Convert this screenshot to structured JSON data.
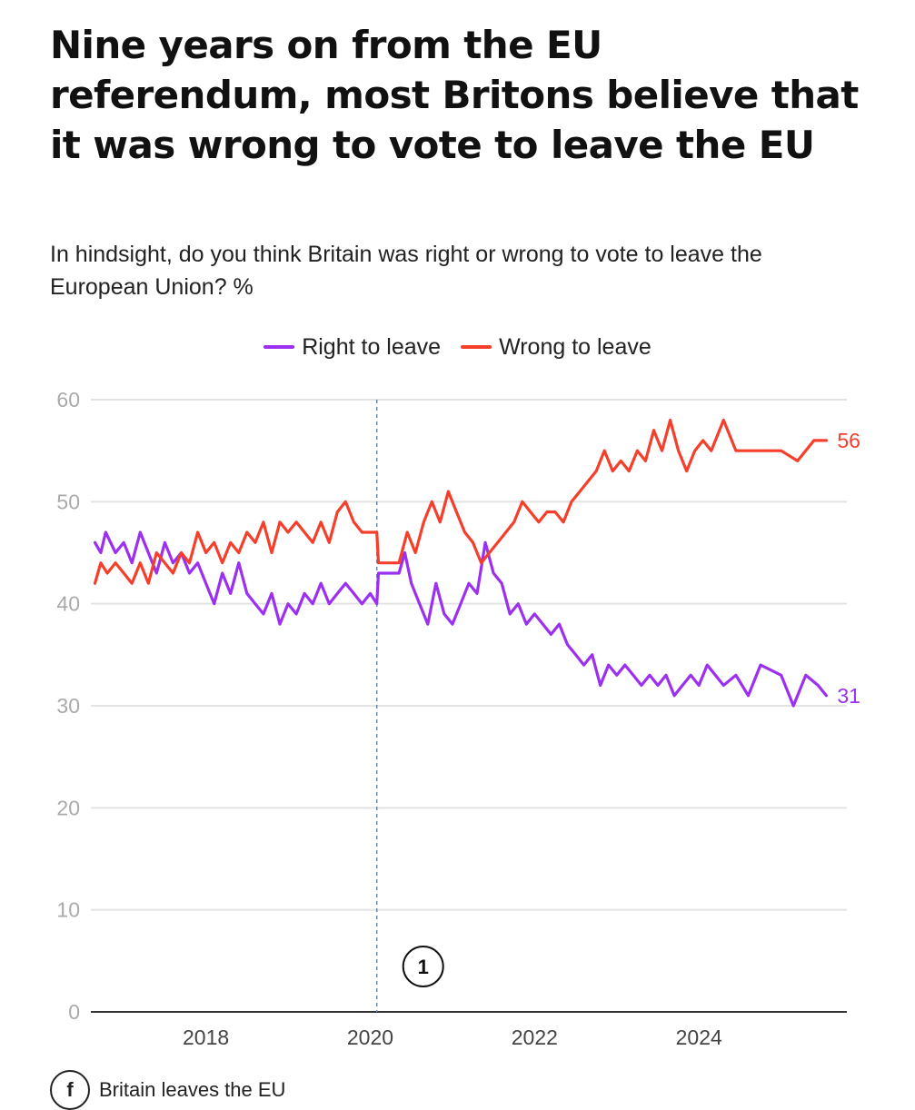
{
  "chart_data": {
    "type": "line",
    "title": "Nine years on from the EU referendum, most Britons believe that it was wrong to vote to leave the EU",
    "subtitle": "In hindsight, do you think Britain was right or wrong to vote to leave the European Union? %",
    "ylim": [
      0,
      60
    ],
    "yticks": [
      "0",
      "10",
      "20",
      "30",
      "40",
      "50",
      "60"
    ],
    "xlim": [
      2016.6,
      2025.8
    ],
    "xticks": [
      2018,
      2020,
      2022,
      2024
    ],
    "xtick_labels": [
      "2018",
      "2020",
      "2022",
      "2024"
    ],
    "grid": true,
    "legend_position": "top-center",
    "annotation": {
      "x": 2020.08,
      "label": "1",
      "style": "dashed-vertical-line"
    },
    "footer_note": {
      "marker": "f",
      "text": "Britain leaves the EU"
    },
    "series": [
      {
        "name": "Right to leave",
        "color": "#9b30f0",
        "end_label": "31",
        "points": [
          [
            2016.65,
            46
          ],
          [
            2016.72,
            45
          ],
          [
            2016.78,
            47
          ],
          [
            2016.9,
            45
          ],
          [
            2017.0,
            46
          ],
          [
            2017.1,
            44
          ],
          [
            2017.2,
            47
          ],
          [
            2017.3,
            45
          ],
          [
            2017.4,
            43
          ],
          [
            2017.5,
            46
          ],
          [
            2017.6,
            44
          ],
          [
            2017.7,
            45
          ],
          [
            2017.8,
            43
          ],
          [
            2017.9,
            44
          ],
          [
            2018.0,
            42
          ],
          [
            2018.1,
            40
          ],
          [
            2018.2,
            43
          ],
          [
            2018.3,
            41
          ],
          [
            2018.4,
            44
          ],
          [
            2018.5,
            41
          ],
          [
            2018.6,
            40
          ],
          [
            2018.7,
            39
          ],
          [
            2018.8,
            41
          ],
          [
            2018.9,
            38
          ],
          [
            2019.0,
            40
          ],
          [
            2019.1,
            39
          ],
          [
            2019.2,
            41
          ],
          [
            2019.3,
            40
          ],
          [
            2019.4,
            42
          ],
          [
            2019.5,
            40
          ],
          [
            2019.6,
            41
          ],
          [
            2019.7,
            42
          ],
          [
            2019.8,
            41
          ],
          [
            2019.9,
            40
          ],
          [
            2020.0,
            41
          ],
          [
            2020.08,
            40
          ],
          [
            2020.1,
            43
          ],
          [
            2020.35,
            43
          ],
          [
            2020.42,
            45
          ],
          [
            2020.5,
            42
          ],
          [
            2020.6,
            40
          ],
          [
            2020.7,
            38
          ],
          [
            2020.8,
            42
          ],
          [
            2020.9,
            39
          ],
          [
            2021.0,
            38
          ],
          [
            2021.1,
            40
          ],
          [
            2021.2,
            42
          ],
          [
            2021.3,
            41
          ],
          [
            2021.4,
            46
          ],
          [
            2021.5,
            43
          ],
          [
            2021.6,
            42
          ],
          [
            2021.7,
            39
          ],
          [
            2021.8,
            40
          ],
          [
            2021.9,
            38
          ],
          [
            2022.0,
            39
          ],
          [
            2022.1,
            38
          ],
          [
            2022.2,
            37
          ],
          [
            2022.3,
            38
          ],
          [
            2022.4,
            36
          ],
          [
            2022.5,
            35
          ],
          [
            2022.6,
            34
          ],
          [
            2022.7,
            35
          ],
          [
            2022.8,
            32
          ],
          [
            2022.9,
            34
          ],
          [
            2023.0,
            33
          ],
          [
            2023.1,
            34
          ],
          [
            2023.2,
            33
          ],
          [
            2023.3,
            32
          ],
          [
            2023.4,
            33
          ],
          [
            2023.5,
            32
          ],
          [
            2023.6,
            33
          ],
          [
            2023.7,
            31
          ],
          [
            2023.8,
            32
          ],
          [
            2023.9,
            33
          ],
          [
            2024.0,
            32
          ],
          [
            2024.1,
            34
          ],
          [
            2024.2,
            33
          ],
          [
            2024.3,
            32
          ],
          [
            2024.45,
            33
          ],
          [
            2024.6,
            31
          ],
          [
            2024.75,
            34
          ],
          [
            2025.0,
            33
          ],
          [
            2025.15,
            30
          ],
          [
            2025.3,
            33
          ],
          [
            2025.45,
            32
          ],
          [
            2025.55,
            31
          ]
        ]
      },
      {
        "name": "Wrong to leave",
        "color": "#f53f2b",
        "end_label": "56",
        "points": [
          [
            2016.65,
            42
          ],
          [
            2016.72,
            44
          ],
          [
            2016.8,
            43
          ],
          [
            2016.9,
            44
          ],
          [
            2017.0,
            43
          ],
          [
            2017.1,
            42
          ],
          [
            2017.2,
            44
          ],
          [
            2017.3,
            42
          ],
          [
            2017.4,
            45
          ],
          [
            2017.5,
            44
          ],
          [
            2017.6,
            43
          ],
          [
            2017.7,
            45
          ],
          [
            2017.8,
            44
          ],
          [
            2017.9,
            47
          ],
          [
            2018.0,
            45
          ],
          [
            2018.1,
            46
          ],
          [
            2018.2,
            44
          ],
          [
            2018.3,
            46
          ],
          [
            2018.4,
            45
          ],
          [
            2018.5,
            47
          ],
          [
            2018.6,
            46
          ],
          [
            2018.7,
            48
          ],
          [
            2018.8,
            45
          ],
          [
            2018.9,
            48
          ],
          [
            2019.0,
            47
          ],
          [
            2019.1,
            48
          ],
          [
            2019.2,
            47
          ],
          [
            2019.3,
            46
          ],
          [
            2019.4,
            48
          ],
          [
            2019.5,
            46
          ],
          [
            2019.6,
            49
          ],
          [
            2019.7,
            50
          ],
          [
            2019.8,
            48
          ],
          [
            2019.9,
            47
          ],
          [
            2020.0,
            47
          ],
          [
            2020.08,
            47
          ],
          [
            2020.1,
            44
          ],
          [
            2020.35,
            44
          ],
          [
            2020.45,
            47
          ],
          [
            2020.55,
            45
          ],
          [
            2020.65,
            48
          ],
          [
            2020.75,
            50
          ],
          [
            2020.85,
            48
          ],
          [
            2020.95,
            51
          ],
          [
            2021.05,
            49
          ],
          [
            2021.15,
            47
          ],
          [
            2021.25,
            46
          ],
          [
            2021.35,
            44
          ],
          [
            2021.45,
            45
          ],
          [
            2021.55,
            46
          ],
          [
            2021.65,
            47
          ],
          [
            2021.75,
            48
          ],
          [
            2021.85,
            50
          ],
          [
            2021.95,
            49
          ],
          [
            2022.05,
            48
          ],
          [
            2022.15,
            49
          ],
          [
            2022.25,
            49
          ],
          [
            2022.35,
            48
          ],
          [
            2022.45,
            50
          ],
          [
            2022.55,
            51
          ],
          [
            2022.65,
            52
          ],
          [
            2022.75,
            53
          ],
          [
            2022.85,
            55
          ],
          [
            2022.95,
            53
          ],
          [
            2023.05,
            54
          ],
          [
            2023.15,
            53
          ],
          [
            2023.25,
            55
          ],
          [
            2023.35,
            54
          ],
          [
            2023.45,
            57
          ],
          [
            2023.55,
            55
          ],
          [
            2023.65,
            58
          ],
          [
            2023.75,
            55
          ],
          [
            2023.85,
            53
          ],
          [
            2023.95,
            55
          ],
          [
            2024.05,
            56
          ],
          [
            2024.15,
            55
          ],
          [
            2024.3,
            58
          ],
          [
            2024.45,
            55
          ],
          [
            2024.7,
            55
          ],
          [
            2025.0,
            55
          ],
          [
            2025.2,
            54
          ],
          [
            2025.4,
            56
          ],
          [
            2025.55,
            56
          ]
        ]
      }
    ]
  }
}
